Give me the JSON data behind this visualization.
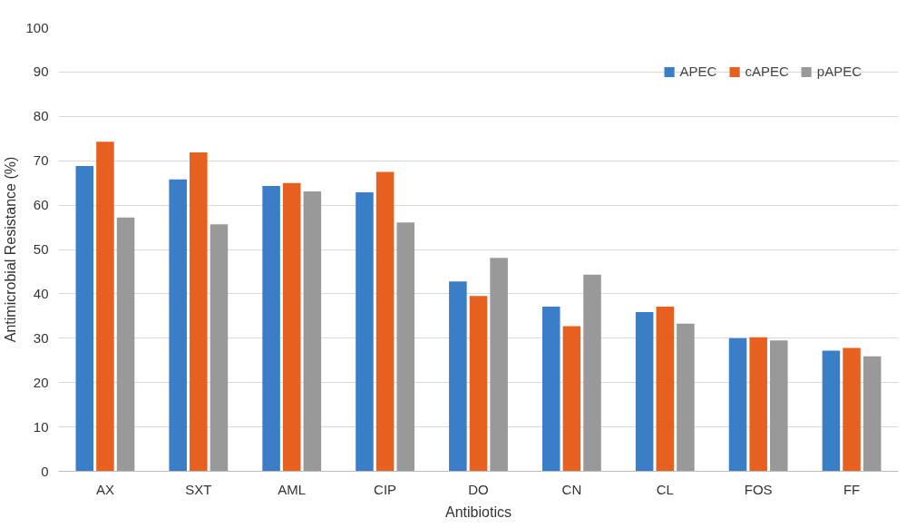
{
  "chart_data": {
    "type": "bar",
    "xlabel": "Antibiotics",
    "ylabel": "Antimicrobial Resistance (%)",
    "categories": [
      "AX",
      "SXT",
      "AML",
      "CIP",
      "DO",
      "CN",
      "CL",
      "FOS",
      "FF"
    ],
    "series": [
      {
        "name": "APEC",
        "color": "#3a7ec7",
        "values": [
          68.8,
          65.8,
          64.3,
          62.9,
          42.8,
          37.1,
          35.9,
          30.0,
          27.2
        ]
      },
      {
        "name": "cAPEC",
        "color": "#e8601f",
        "values": [
          74.3,
          71.9,
          65.0,
          67.5,
          39.5,
          32.7,
          37.1,
          30.2,
          27.8
        ]
      },
      {
        "name": "pAPEC",
        "color": "#999999",
        "values": [
          57.2,
          55.7,
          63.1,
          56.1,
          48.1,
          44.3,
          33.3,
          29.5,
          25.9
        ]
      }
    ],
    "ylim": [
      0,
      100
    ],
    "yticks": [
      0,
      10,
      20,
      30,
      40,
      50,
      60,
      70,
      80,
      90,
      100
    ],
    "grid": "y",
    "legend": "top right"
  }
}
